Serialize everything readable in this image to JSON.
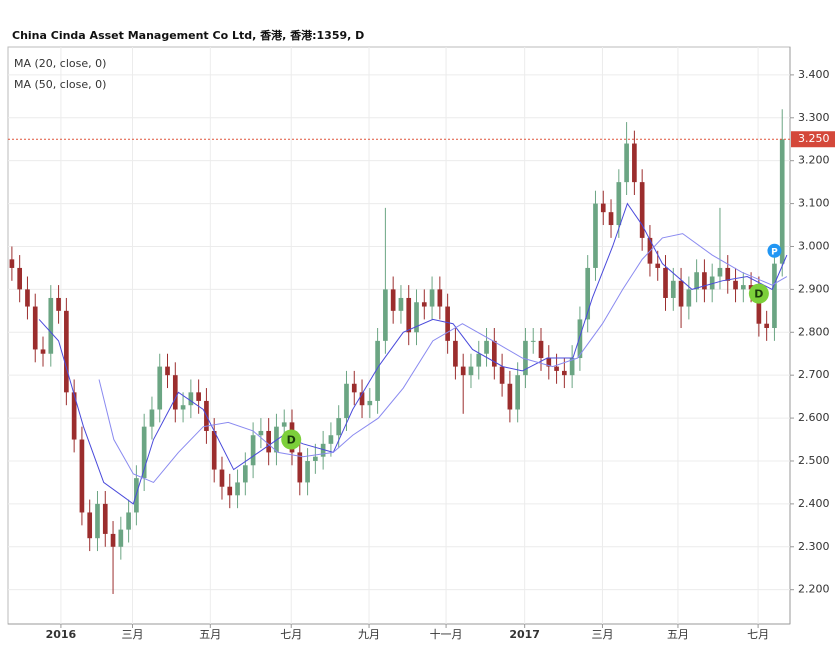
{
  "chart_data": {
    "type": "candlestick",
    "title": "China Cinda Asset Management Co Ltd, 香港, 香港:1359, D",
    "x": [
      0,
      1,
      2,
      3,
      4,
      5,
      6,
      7,
      8,
      9,
      10,
      11,
      12,
      13,
      14,
      15,
      16,
      17,
      18,
      19,
      20,
      21,
      22,
      23,
      24,
      25,
      26,
      27,
      28,
      29,
      30,
      31,
      32,
      33,
      34,
      35,
      36,
      37,
      38,
      39,
      40,
      41,
      42,
      43,
      44,
      45,
      46,
      47,
      48,
      49,
      50,
      51,
      52,
      53,
      54,
      55,
      56,
      57,
      58,
      59,
      60,
      61,
      62,
      63,
      64,
      65,
      66,
      67,
      68,
      69,
      70,
      71,
      72,
      73,
      74,
      75,
      76,
      77,
      78,
      79,
      80,
      81,
      82,
      83,
      84,
      85,
      86,
      87,
      88,
      89,
      90,
      91,
      92,
      93,
      94,
      95,
      96,
      97,
      98,
      99
    ],
    "open": [
      2.97,
      2.95,
      2.9,
      2.86,
      2.76,
      2.75,
      2.88,
      2.85,
      2.66,
      2.55,
      2.38,
      2.32,
      2.4,
      2.33,
      2.3,
      2.34,
      2.38,
      2.46,
      2.58,
      2.62,
      2.72,
      2.7,
      2.62,
      2.63,
      2.66,
      2.64,
      2.57,
      2.48,
      2.44,
      2.42,
      2.45,
      2.49,
      2.56,
      2.57,
      2.52,
      2.58,
      2.59,
      2.52,
      2.45,
      2.5,
      2.51,
      2.54,
      2.56,
      2.6,
      2.68,
      2.66,
      2.63,
      2.64,
      2.78,
      2.9,
      2.85,
      2.88,
      2.8,
      2.87,
      2.86,
      2.9,
      2.86,
      2.78,
      2.72,
      2.7,
      2.72,
      2.75,
      2.78,
      2.72,
      2.68,
      2.62,
      2.7,
      2.78,
      2.78,
      2.74,
      2.72,
      2.71,
      2.7,
      2.74,
      2.83,
      2.95,
      3.1,
      3.08,
      3.05,
      3.15,
      3.24,
      3.15,
      3.02,
      2.96,
      2.95,
      2.88,
      2.92,
      2.86,
      2.9,
      2.94,
      2.9,
      2.93,
      2.95,
      2.92,
      2.9,
      2.91,
      2.9,
      2.82,
      2.81,
      2.96
    ],
    "high": [
      3.0,
      2.98,
      2.93,
      2.89,
      2.79,
      2.91,
      2.91,
      2.88,
      2.69,
      2.58,
      2.41,
      2.43,
      2.43,
      2.36,
      2.37,
      2.41,
      2.49,
      2.61,
      2.65,
      2.75,
      2.75,
      2.73,
      2.66,
      2.69,
      2.69,
      2.67,
      2.6,
      2.51,
      2.47,
      2.48,
      2.52,
      2.59,
      2.6,
      2.6,
      2.61,
      2.62,
      2.62,
      2.55,
      2.53,
      2.54,
      2.57,
      2.59,
      2.63,
      2.71,
      2.71,
      2.69,
      2.67,
      2.81,
      3.09,
      2.93,
      2.91,
      2.91,
      2.9,
      2.9,
      2.93,
      2.93,
      2.89,
      2.81,
      2.75,
      2.75,
      2.78,
      2.81,
      2.81,
      2.75,
      2.71,
      2.73,
      2.81,
      2.81,
      2.81,
      2.77,
      2.75,
      2.74,
      2.77,
      2.86,
      2.98,
      3.13,
      3.13,
      3.11,
      3.18,
      3.29,
      3.27,
      3.18,
      3.05,
      2.99,
      2.98,
      2.95,
      2.95,
      2.93,
      2.97,
      2.97,
      2.96,
      3.09,
      2.98,
      2.95,
      2.94,
      2.94,
      2.93,
      2.85,
      2.99,
      3.32
    ],
    "low": [
      2.92,
      2.87,
      2.83,
      2.73,
      2.72,
      2.72,
      2.82,
      2.63,
      2.52,
      2.35,
      2.29,
      2.29,
      2.3,
      2.19,
      2.27,
      2.31,
      2.35,
      2.43,
      2.55,
      2.59,
      2.67,
      2.59,
      2.59,
      2.6,
      2.61,
      2.54,
      2.45,
      2.41,
      2.39,
      2.39,
      2.42,
      2.46,
      2.53,
      2.49,
      2.49,
      2.55,
      2.49,
      2.42,
      2.42,
      2.47,
      2.48,
      2.51,
      2.53,
      2.57,
      2.63,
      2.6,
      2.6,
      2.61,
      2.75,
      2.82,
      2.82,
      2.77,
      2.77,
      2.83,
      2.83,
      2.83,
      2.75,
      2.69,
      2.61,
      2.67,
      2.69,
      2.72,
      2.69,
      2.65,
      2.59,
      2.59,
      2.67,
      2.75,
      2.71,
      2.69,
      2.68,
      2.67,
      2.67,
      2.71,
      2.8,
      2.92,
      3.05,
      3.02,
      3.02,
      3.12,
      3.12,
      2.99,
      2.93,
      2.92,
      2.85,
      2.85,
      2.81,
      2.83,
      2.87,
      2.87,
      2.87,
      2.9,
      2.89,
      2.87,
      2.87,
      2.87,
      2.79,
      2.78,
      2.78,
      2.93
    ],
    "close": [
      2.95,
      2.9,
      2.86,
      2.76,
      2.75,
      2.88,
      2.85,
      2.66,
      2.55,
      2.38,
      2.32,
      2.4,
      2.33,
      2.3,
      2.34,
      2.38,
      2.46,
      2.58,
      2.62,
      2.72,
      2.7,
      2.62,
      2.63,
      2.66,
      2.64,
      2.57,
      2.48,
      2.44,
      2.42,
      2.45,
      2.49,
      2.56,
      2.57,
      2.52,
      2.58,
      2.59,
      2.52,
      2.45,
      2.5,
      2.51,
      2.54,
      2.56,
      2.6,
      2.68,
      2.66,
      2.63,
      2.64,
      2.78,
      2.9,
      2.85,
      2.88,
      2.8,
      2.87,
      2.86,
      2.9,
      2.86,
      2.78,
      2.72,
      2.7,
      2.72,
      2.75,
      2.78,
      2.72,
      2.68,
      2.62,
      2.7,
      2.78,
      2.78,
      2.74,
      2.72,
      2.71,
      2.7,
      2.74,
      2.83,
      2.95,
      3.1,
      3.08,
      3.05,
      3.15,
      3.24,
      3.15,
      3.02,
      2.96,
      2.95,
      2.88,
      2.92,
      2.86,
      2.9,
      2.94,
      2.9,
      2.93,
      2.95,
      2.92,
      2.9,
      2.91,
      2.9,
      2.82,
      2.81,
      2.96,
      3.25
    ],
    "up_color": "#6ba583",
    "down_color": "#9b2d2d",
    "series": [
      {
        "name": "MA (20, close, 0)",
        "color": "#4a4adb",
        "x": [
          3.5,
          6.0,
          9.2,
          11.8,
          15.6,
          18.2,
          21.4,
          24.6,
          28.5,
          31.7,
          34.9,
          37.4,
          41.3,
          43.8,
          47.1,
          50.3,
          54.1,
          56.7,
          59.2,
          63.1,
          65.6,
          68.8,
          72.1,
          74.6,
          77.2,
          79.1,
          81.0,
          83.6,
          87.4,
          91.3,
          94.5,
          97.7,
          99.6
        ],
        "values": [
          2.83,
          2.78,
          2.58,
          2.45,
          2.4,
          2.55,
          2.66,
          2.62,
          2.48,
          2.52,
          2.56,
          2.54,
          2.52,
          2.62,
          2.72,
          2.8,
          2.83,
          2.82,
          2.76,
          2.72,
          2.71,
          2.74,
          2.74,
          2.88,
          3.0,
          3.1,
          3.05,
          2.96,
          2.9,
          2.92,
          2.93,
          2.9,
          2.98
        ]
      },
      {
        "name": "MA (50, close, 0)",
        "color": "#8a8af0",
        "x": [
          11.2,
          13.1,
          15.6,
          18.2,
          21.4,
          24.6,
          27.8,
          31.0,
          34.2,
          37.4,
          41.3,
          43.8,
          47.1,
          50.3,
          54.1,
          57.9,
          61.8,
          65.6,
          69.5,
          72.7,
          75.9,
          78.5,
          81.0,
          83.6,
          86.2,
          90.0,
          93.8,
          97.7,
          99.6
        ],
        "values": [
          2.69,
          2.55,
          2.47,
          2.45,
          2.52,
          2.58,
          2.59,
          2.57,
          2.52,
          2.51,
          2.52,
          2.56,
          2.6,
          2.67,
          2.78,
          2.82,
          2.78,
          2.74,
          2.72,
          2.74,
          2.82,
          2.9,
          2.97,
          3.02,
          3.03,
          2.98,
          2.94,
          2.91,
          2.93
        ]
      }
    ],
    "events": [
      {
        "label": "D",
        "x": 35.9,
        "value": 2.55,
        "color": "#7ccf3a"
      },
      {
        "label": "D",
        "x": 96.0,
        "value": 2.89,
        "color": "#7ccf3a"
      },
      {
        "label": "P",
        "x": 98.0,
        "value": 2.99,
        "color": "#2196f3"
      }
    ],
    "last_price": {
      "value": 3.25,
      "label": "3.250"
    },
    "xlim": [
      -0.5,
      100
    ],
    "ylim": [
      2.12,
      3.465
    ],
    "xticks": [
      {
        "value": 6.3,
        "label": "2016"
      },
      {
        "value": 15.5,
        "label": "三月"
      },
      {
        "value": 25.5,
        "label": "五月"
      },
      {
        "value": 35.9,
        "label": "七月"
      },
      {
        "value": 45.9,
        "label": "九月"
      },
      {
        "value": 55.8,
        "label": "十一月"
      },
      {
        "value": 65.9,
        "label": "2017"
      },
      {
        "value": 75.9,
        "label": "三月"
      },
      {
        "value": 85.6,
        "label": "五月"
      },
      {
        "value": 95.9,
        "label": "七月"
      }
    ],
    "yticks": [
      {
        "value": 2.2,
        "label": "2.200"
      },
      {
        "value": 2.3,
        "label": "2.300"
      },
      {
        "value": 2.4,
        "label": "2.400"
      },
      {
        "value": 2.5,
        "label": "2.500"
      },
      {
        "value": 2.6,
        "label": "2.600"
      },
      {
        "value": 2.7,
        "label": "2.700"
      },
      {
        "value": 2.8,
        "label": "2.800"
      },
      {
        "value": 2.9,
        "label": "2.900"
      },
      {
        "value": 3.0,
        "label": "3.000"
      },
      {
        "value": 3.1,
        "label": "3.100"
      },
      {
        "value": 3.2,
        "label": "3.200"
      },
      {
        "value": 3.3,
        "label": "3.300"
      },
      {
        "value": 3.4,
        "label": "3.400"
      }
    ],
    "grid": true
  }
}
